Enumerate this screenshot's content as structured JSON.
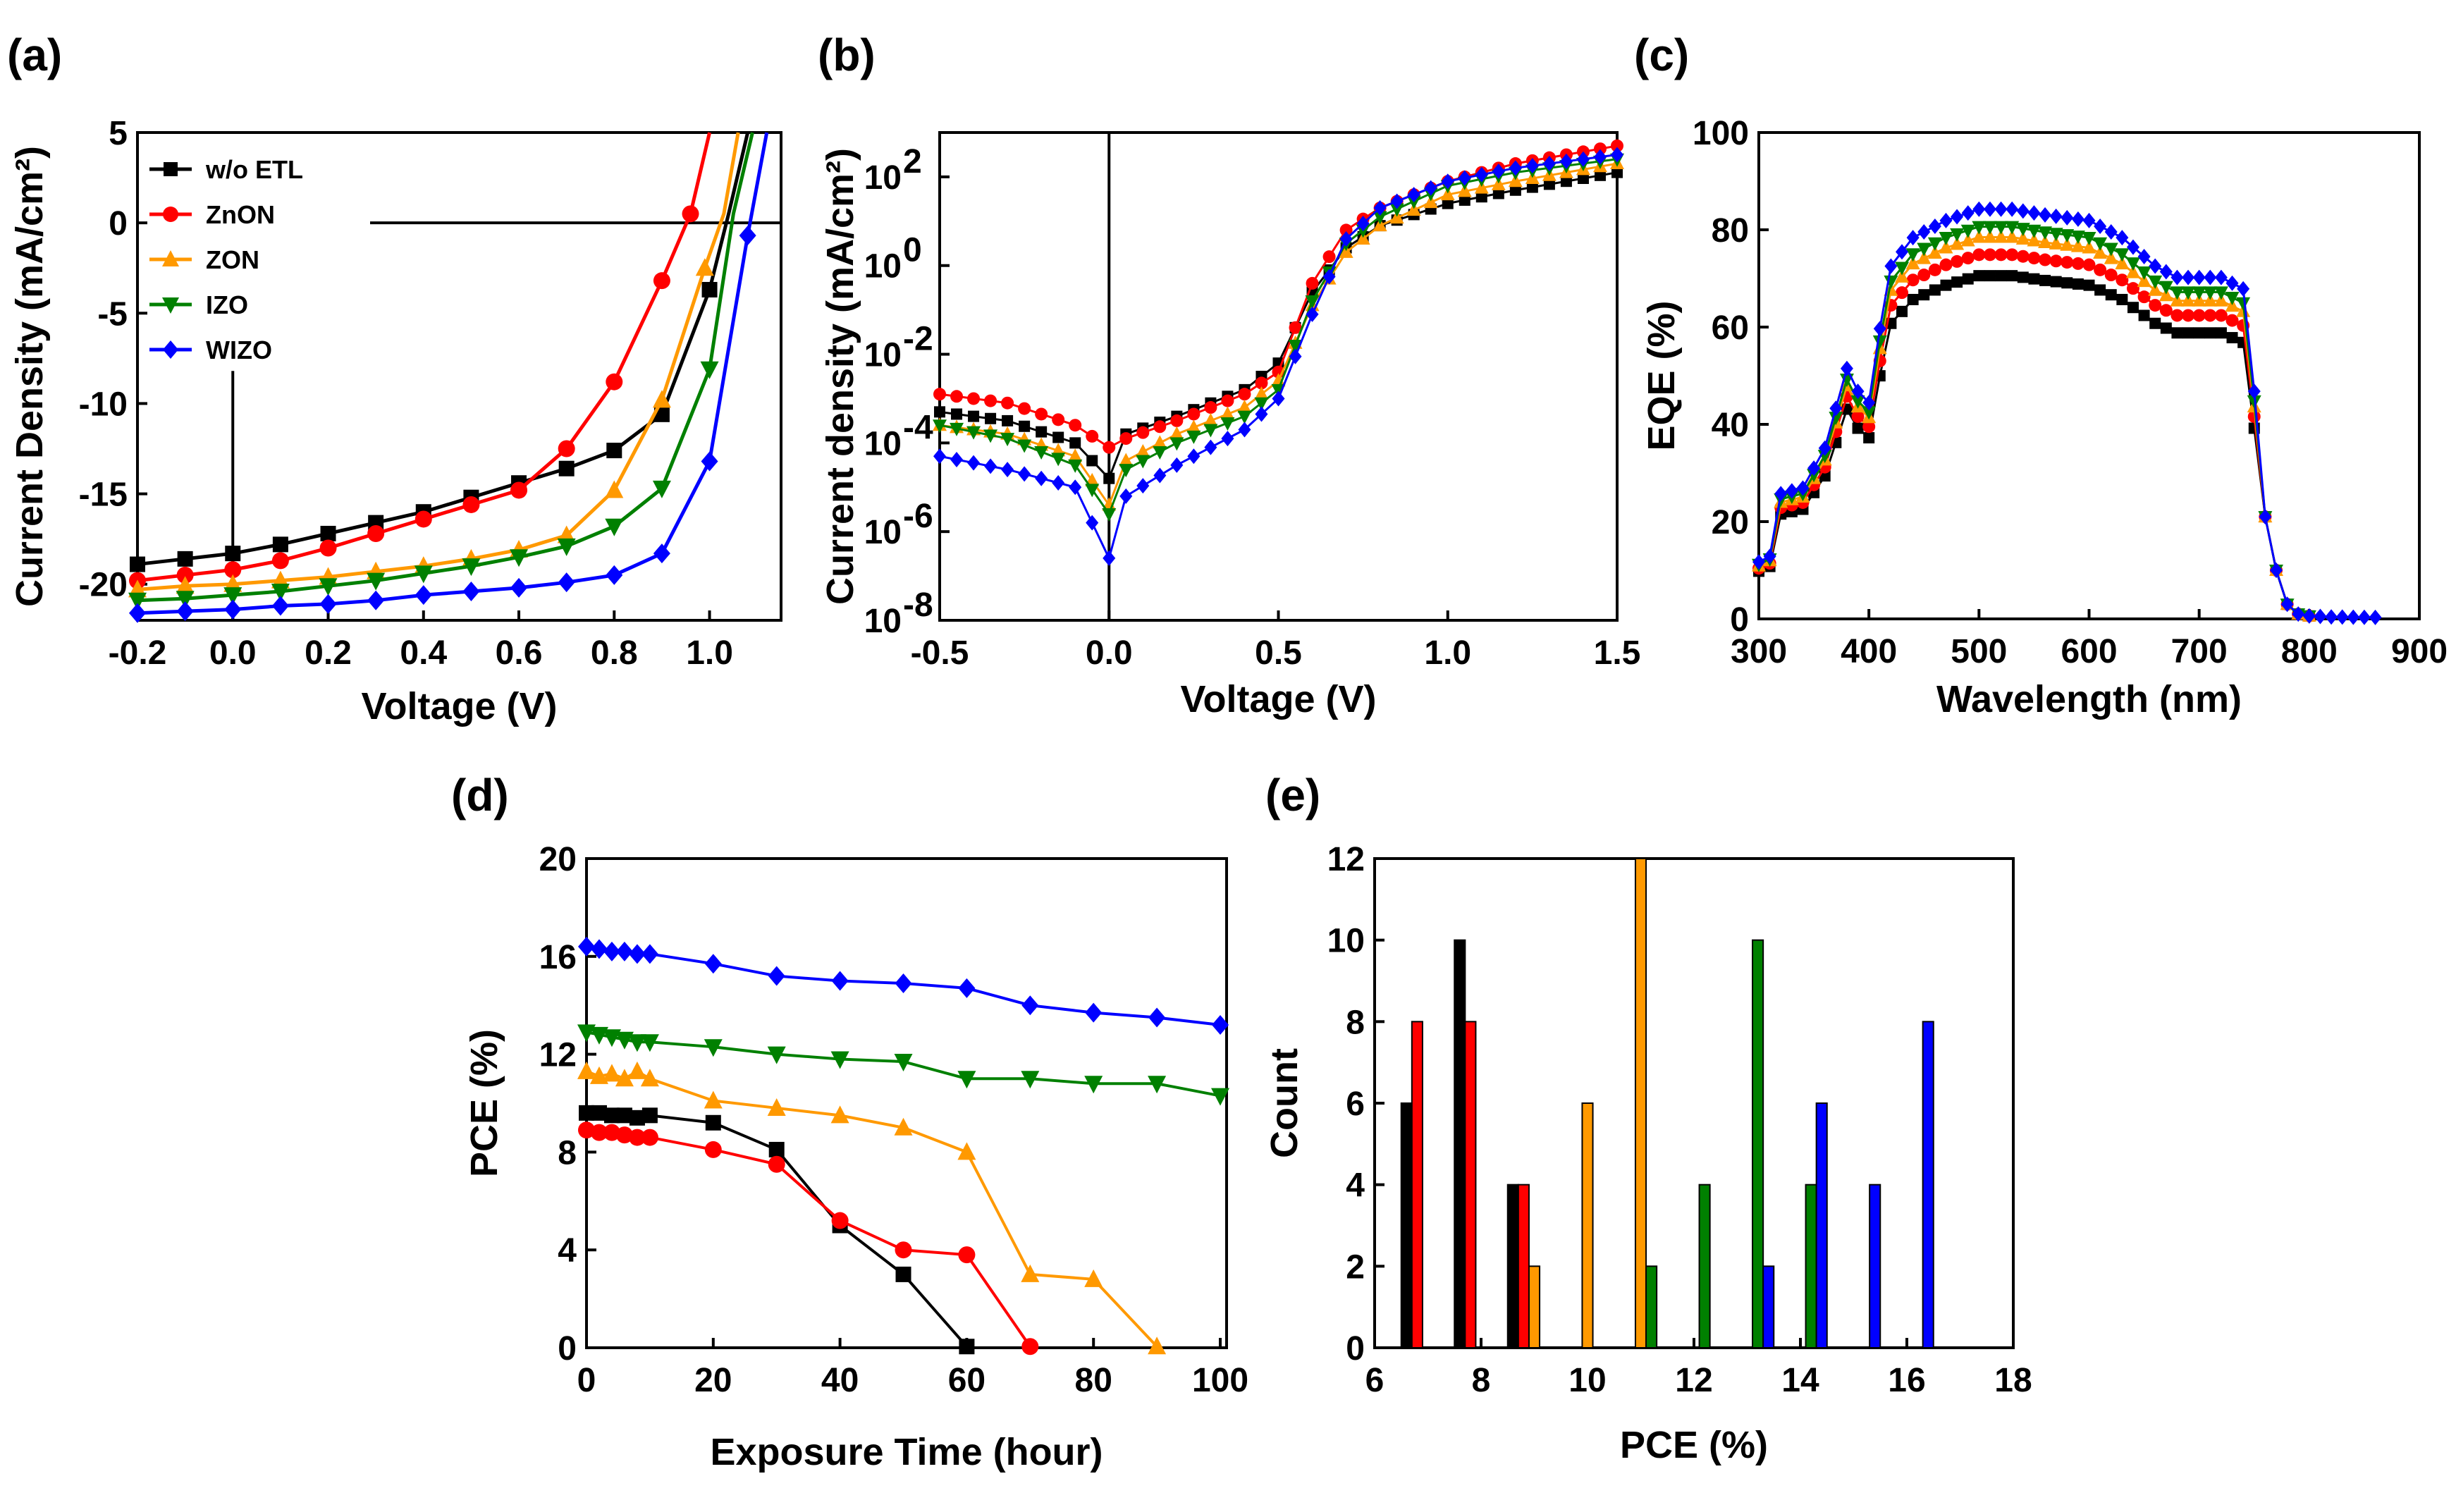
{
  "colors": {
    "wo_etl": "#000000",
    "znon": "#ff0000",
    "zon": "#ff9900",
    "izo": "#008000",
    "wizo": "#0000ff"
  },
  "chart_data": [
    {
      "id": "a",
      "panel_label": "(a)",
      "type": "line",
      "xlabel": "Voltage (V)",
      "ylabel": "Current Density (mA/cm²)",
      "xlim": [
        -0.2,
        1.15
      ],
      "ylim": [
        -22,
        5
      ],
      "xticks": [
        -0.2,
        0.0,
        0.2,
        0.4,
        0.6,
        0.8,
        1.0
      ],
      "xtick_labels": [
        "-0.2",
        "0.0",
        "0.2",
        "0.4",
        "0.6",
        "0.8",
        "1.0"
      ],
      "yticks": [
        5,
        0,
        -5,
        -10,
        -15,
        -20
      ],
      "ytick_labels": [
        "5",
        "0",
        "-5",
        "-10",
        "-15",
        "-20"
      ],
      "legend": [
        "w/o ETL",
        "ZnON",
        "ZON",
        "IZO",
        "WIZO"
      ],
      "series": [
        {
          "name": "w/o ETL",
          "color_key": "wo_etl",
          "marker": "square",
          "x": [
            -0.2,
            -0.1,
            0,
            0.1,
            0.2,
            0.3,
            0.4,
            0.5,
            0.6,
            0.7,
            0.8,
            0.9,
            1.0,
            1.04,
            1.08
          ],
          "y": [
            -18.9,
            -18.6,
            -18.3,
            -17.8,
            -17.2,
            -16.6,
            -16.0,
            -15.2,
            -14.4,
            -13.6,
            -12.6,
            -10.6,
            -3.7,
            0.5,
            5
          ]
        },
        {
          "name": "ZnON",
          "color_key": "znon",
          "marker": "circle",
          "x": [
            -0.2,
            -0.1,
            0,
            0.1,
            0.2,
            0.3,
            0.4,
            0.5,
            0.6,
            0.7,
            0.8,
            0.9,
            0.96,
            1.0
          ],
          "y": [
            -19.8,
            -19.5,
            -19.2,
            -18.7,
            -18.0,
            -17.2,
            -16.4,
            -15.6,
            -14.8,
            -12.5,
            -8.8,
            -3.2,
            0.5,
            5
          ]
        },
        {
          "name": "ZON",
          "color_key": "zon",
          "marker": "triangle-up",
          "x": [
            -0.2,
            -0.1,
            0,
            0.1,
            0.2,
            0.3,
            0.4,
            0.5,
            0.6,
            0.7,
            0.8,
            0.9,
            0.99,
            1.03,
            1.06
          ],
          "y": [
            -20.3,
            -20.1,
            -20.0,
            -19.8,
            -19.6,
            -19.3,
            -19.0,
            -18.6,
            -18.1,
            -17.3,
            -14.8,
            -9.8,
            -2.5,
            0.5,
            5
          ]
        },
        {
          "name": "IZO",
          "color_key": "izo",
          "marker": "triangle-down",
          "x": [
            -0.2,
            -0.1,
            0,
            0.1,
            0.2,
            0.3,
            0.4,
            0.5,
            0.6,
            0.7,
            0.8,
            0.9,
            1.0,
            1.05,
            1.09
          ],
          "y": [
            -20.9,
            -20.8,
            -20.6,
            -20.4,
            -20.1,
            -19.8,
            -19.4,
            -19.0,
            -18.5,
            -17.9,
            -16.8,
            -14.7,
            -8.1,
            0.5,
            5
          ]
        },
        {
          "name": "WIZO",
          "color_key": "wizo",
          "marker": "diamond",
          "x": [
            -0.2,
            -0.1,
            0,
            0.1,
            0.2,
            0.3,
            0.4,
            0.5,
            0.6,
            0.7,
            0.8,
            0.9,
            1.0,
            1.08,
            1.12
          ],
          "y": [
            -21.6,
            -21.5,
            -21.4,
            -21.2,
            -21.1,
            -20.9,
            -20.6,
            -20.4,
            -20.2,
            -19.9,
            -19.5,
            -18.3,
            -13.2,
            -0.7,
            5
          ]
        }
      ]
    },
    {
      "id": "b",
      "panel_label": "(b)",
      "type": "line",
      "xlabel": "Voltage (V)",
      "ylabel": "Current density (mA/cm²)",
      "yscale": "log",
      "xlim": [
        -0.5,
        1.5
      ],
      "ylim_log10": [
        -8,
        3
      ],
      "xticks": [
        -0.5,
        0.0,
        0.5,
        1.0,
        1.5
      ],
      "xtick_labels": [
        "-0.5",
        "0.0",
        "0.5",
        "1.0",
        "1.5"
      ],
      "ytick_exponents": [
        2,
        0,
        -2,
        -4,
        -6,
        -8
      ],
      "ytick_labels": [
        "10",
        "10",
        "10",
        "10",
        "10",
        "10"
      ],
      "ytick_superscripts": [
        "2",
        "0",
        "-2",
        "-4",
        "-6",
        "-8"
      ],
      "series": [
        {
          "name": "w/o ETL",
          "color_key": "wo_etl",
          "marker": "square",
          "log10_at": [
            [
              -0.5,
              -3.3
            ],
            [
              -0.3,
              -3.5
            ],
            [
              -0.1,
              -4.0
            ],
            [
              0.0,
              -4.8
            ],
            [
              0.05,
              -3.8
            ],
            [
              0.2,
              -3.4
            ],
            [
              0.4,
              -2.8
            ],
            [
              0.5,
              -2.2
            ],
            [
              0.6,
              -0.6
            ],
            [
              0.7,
              0.4
            ],
            [
              0.8,
              0.9
            ],
            [
              1.0,
              1.4
            ],
            [
              1.2,
              1.7
            ],
            [
              1.5,
              2.1
            ]
          ]
        },
        {
          "name": "ZnON",
          "color_key": "znon",
          "marker": "circle",
          "log10_at": [
            [
              -0.5,
              -2.9
            ],
            [
              -0.3,
              -3.1
            ],
            [
              -0.1,
              -3.6
            ],
            [
              0.0,
              -4.1
            ],
            [
              0.05,
              -3.9
            ],
            [
              0.2,
              -3.5
            ],
            [
              0.4,
              -2.9
            ],
            [
              0.5,
              -2.4
            ],
            [
              0.6,
              -0.4
            ],
            [
              0.7,
              0.8
            ],
            [
              0.8,
              1.3
            ],
            [
              1.0,
              1.9
            ],
            [
              1.2,
              2.3
            ],
            [
              1.5,
              2.7
            ]
          ]
        },
        {
          "name": "ZON",
          "color_key": "zon",
          "marker": "triangle-up",
          "log10_at": [
            [
              -0.5,
              -3.6
            ],
            [
              -0.3,
              -3.8
            ],
            [
              -0.1,
              -4.3
            ],
            [
              0.0,
              -5.4
            ],
            [
              0.05,
              -4.4
            ],
            [
              0.2,
              -3.8
            ],
            [
              0.4,
              -3.2
            ],
            [
              0.5,
              -2.6
            ],
            [
              0.6,
              -0.9
            ],
            [
              0.7,
              0.3
            ],
            [
              0.8,
              0.9
            ],
            [
              1.0,
              1.6
            ],
            [
              1.2,
              1.9
            ],
            [
              1.5,
              2.3
            ]
          ]
        },
        {
          "name": "IZO",
          "color_key": "izo",
          "marker": "triangle-down",
          "log10_at": [
            [
              -0.5,
              -3.6
            ],
            [
              -0.3,
              -3.9
            ],
            [
              -0.1,
              -4.5
            ],
            [
              0.0,
              -5.6
            ],
            [
              0.05,
              -4.6
            ],
            [
              0.2,
              -4.0
            ],
            [
              0.4,
              -3.4
            ],
            [
              0.5,
              -2.8
            ],
            [
              0.6,
              -0.8
            ],
            [
              0.7,
              0.5
            ],
            [
              0.8,
              1.1
            ],
            [
              1.0,
              1.8
            ],
            [
              1.2,
              2.1
            ],
            [
              1.5,
              2.4
            ]
          ]
        },
        {
          "name": "WIZO",
          "color_key": "wizo",
          "marker": "diamond",
          "log10_at": [
            [
              -0.5,
              -4.3
            ],
            [
              -0.3,
              -4.6
            ],
            [
              -0.1,
              -5.0
            ],
            [
              0.0,
              -6.6
            ],
            [
              0.05,
              -5.2
            ],
            [
              0.2,
              -4.5
            ],
            [
              0.4,
              -3.7
            ],
            [
              0.5,
              -3.0
            ],
            [
              0.6,
              -1.1
            ],
            [
              0.7,
              0.6
            ],
            [
              0.8,
              1.3
            ],
            [
              1.0,
              1.9
            ],
            [
              1.2,
              2.2
            ],
            [
              1.5,
              2.5
            ]
          ]
        }
      ]
    },
    {
      "id": "c",
      "panel_label": "(c)",
      "type": "line",
      "xlabel": "Wavelength (nm)",
      "ylabel": "EQE (%)",
      "xlim": [
        300,
        900
      ],
      "ylim": [
        0,
        100
      ],
      "xticks": [
        300,
        400,
        500,
        600,
        700,
        800,
        900
      ],
      "xtick_labels": [
        "300",
        "400",
        "500",
        "600",
        "700",
        "800",
        "900"
      ],
      "yticks": [
        0,
        20,
        40,
        60,
        80,
        100
      ],
      "ytick_labels": [
        "0",
        "20",
        "40",
        "60",
        "80",
        "100"
      ],
      "base_curve": {
        "wavelength": [
          300,
          310,
          320,
          340,
          360,
          380,
          390,
          400,
          410,
          420,
          440,
          470,
          500,
          530,
          560,
          600,
          630,
          660,
          680,
          700,
          720,
          740,
          745,
          750,
          760,
          770,
          780,
          790,
          800,
          820,
          860
        ],
        "eqe": [
          10,
          11,
          22,
          23,
          30,
          44,
          40,
          38,
          51,
          62,
          67,
          70,
          72,
          72,
          71,
          70,
          67,
          62,
          60,
          60,
          60,
          58,
          54,
          40,
          21,
          10,
          3,
          1,
          0.6,
          0.4,
          0.3
        ]
      },
      "series": [
        {
          "name": "w/o ETL",
          "color_key": "wo_etl",
          "marker": "square",
          "scale": 0.98,
          "end_at": 800
        },
        {
          "name": "ZnON",
          "color_key": "znon",
          "marker": "circle",
          "scale": 1.04,
          "end_at": 800
        },
        {
          "name": "ZON",
          "color_key": "zon",
          "marker": "triangle-up",
          "scale": 1.09,
          "end_at": 800
        },
        {
          "name": "IZO",
          "color_key": "izo",
          "marker": "triangle-down",
          "scale": 1.12,
          "end_at": 800
        },
        {
          "name": "WIZO",
          "color_key": "wizo",
          "marker": "diamond",
          "scale": 1.17,
          "end_at": 860
        }
      ]
    },
    {
      "id": "d",
      "panel_label": "(d)",
      "type": "line",
      "xlabel": "Exposure Time (hour)",
      "ylabel": "PCE (%)",
      "xlim": [
        0,
        101
      ],
      "ylim": [
        0,
        20
      ],
      "xticks": [
        0,
        20,
        40,
        60,
        80,
        100
      ],
      "xtick_labels": [
        "0",
        "20",
        "40",
        "60",
        "80",
        "100"
      ],
      "yticks": [
        0,
        4,
        8,
        12,
        16,
        20
      ],
      "ytick_labels": [
        "0",
        "4",
        "8",
        "12",
        "16",
        "20"
      ],
      "series": [
        {
          "name": "w/o ETL",
          "color_key": "wo_etl",
          "marker": "square",
          "x": [
            0,
            2,
            4,
            6,
            8,
            10,
            20,
            30,
            40,
            50,
            60
          ],
          "y": [
            9.6,
            9.6,
            9.5,
            9.5,
            9.4,
            9.5,
            9.2,
            8.1,
            5.0,
            3.0,
            0.05
          ]
        },
        {
          "name": "ZnON",
          "color_key": "znon",
          "marker": "circle",
          "x": [
            0,
            2,
            4,
            6,
            8,
            10,
            20,
            30,
            40,
            50,
            60,
            70
          ],
          "y": [
            8.9,
            8.8,
            8.8,
            8.7,
            8.6,
            8.6,
            8.1,
            7.5,
            5.2,
            4.0,
            3.8,
            0.05
          ]
        },
        {
          "name": "ZON",
          "color_key": "zon",
          "marker": "triangle-up",
          "x": [
            0,
            2,
            4,
            6,
            8,
            10,
            20,
            30,
            40,
            50,
            60,
            70,
            80,
            90
          ],
          "y": [
            11.3,
            11.1,
            11.2,
            11.0,
            11.3,
            11.0,
            10.1,
            9.8,
            9.5,
            9.0,
            8.0,
            3.0,
            2.8,
            0.05
          ]
        },
        {
          "name": "IZO",
          "color_key": "izo",
          "marker": "triangle-down",
          "x": [
            0,
            2,
            4,
            6,
            8,
            10,
            20,
            30,
            40,
            50,
            60,
            70,
            80,
            90,
            100
          ],
          "y": [
            12.9,
            12.8,
            12.7,
            12.6,
            12.5,
            12.5,
            12.3,
            12.0,
            11.8,
            11.7,
            11.0,
            11.0,
            10.8,
            10.8,
            10.3
          ]
        },
        {
          "name": "WIZO",
          "color_key": "wizo",
          "marker": "diamond",
          "x": [
            0,
            2,
            4,
            6,
            8,
            10,
            20,
            30,
            40,
            50,
            60,
            70,
            80,
            90,
            100
          ],
          "y": [
            16.4,
            16.3,
            16.2,
            16.2,
            16.1,
            16.1,
            15.7,
            15.2,
            15.0,
            14.9,
            14.7,
            14.0,
            13.7,
            13.5,
            13.2
          ]
        }
      ]
    },
    {
      "id": "e",
      "panel_label": "(e)",
      "type": "bar",
      "xlabel": "PCE (%)",
      "ylabel": "Count",
      "xlim": [
        6,
        18
      ],
      "ylim": [
        0,
        12
      ],
      "xticks": [
        6,
        8,
        10,
        12,
        14,
        16,
        18
      ],
      "xtick_labels": [
        "6",
        "8",
        "10",
        "12",
        "14",
        "16",
        "18"
      ],
      "yticks": [
        0,
        2,
        4,
        6,
        8,
        10,
        12
      ],
      "ytick_labels": [
        "0",
        "2",
        "4",
        "6",
        "8",
        "10",
        "12"
      ],
      "bar_width": 0.2,
      "series": [
        {
          "name": "w/o ETL",
          "color_key": "wo_etl",
          "x": [
            6.6,
            7.6,
            8.6
          ],
          "counts": [
            6,
            10,
            4
          ]
        },
        {
          "name": "ZnON",
          "color_key": "znon",
          "x": [
            6.8,
            7.8,
            8.8
          ],
          "counts": [
            8,
            8,
            4
          ]
        },
        {
          "name": "ZON",
          "color_key": "zon",
          "x": [
            9.0,
            10.0,
            11.0
          ],
          "counts": [
            2,
            6,
            12
          ]
        },
        {
          "name": "IZO",
          "color_key": "izo",
          "x": [
            11.2,
            12.2,
            13.2,
            14.2
          ],
          "counts": [
            2,
            4,
            10,
            4
          ]
        },
        {
          "name": "WIZO",
          "color_key": "wizo",
          "x": [
            13.4,
            14.4,
            15.4,
            16.4
          ],
          "counts": [
            2,
            6,
            4,
            8
          ]
        }
      ]
    }
  ]
}
